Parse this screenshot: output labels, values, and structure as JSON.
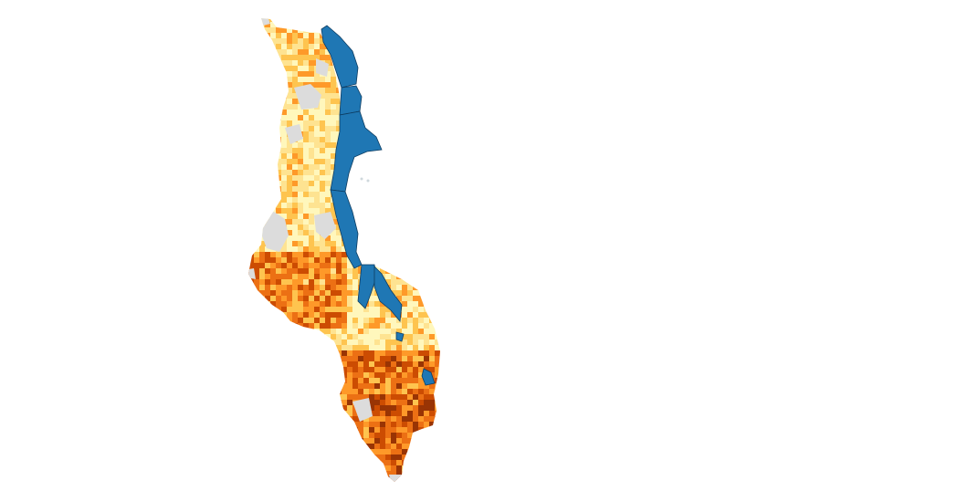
{
  "map": {
    "region": "Malawi",
    "layers": [
      {
        "name": "choropleth-grid",
        "kind": "raster-grid"
      },
      {
        "name": "lake",
        "kind": "water-polygon"
      },
      {
        "name": "no-data",
        "kind": "mask"
      }
    ]
  },
  "colors": {
    "background": "#ffffff",
    "lake_fill": "#1f77b4",
    "lake_outline": "#0d3c61",
    "no_data": "#dcdcdc",
    "ramp": [
      "#fff7bc",
      "#fee391",
      "#fec44f",
      "#fe9929",
      "#ec7014",
      "#cc4c02",
      "#993404"
    ]
  },
  "legend": null,
  "title": ""
}
